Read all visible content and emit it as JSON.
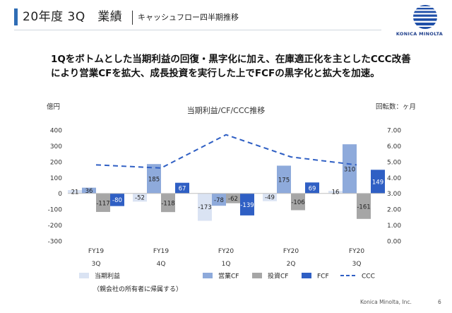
{
  "header": {
    "title": "20年度 3Q　業績",
    "subtitle": "キャッシュフロー四半期推移",
    "logo_text": "KONICA MINOLTA"
  },
  "lead_text": [
    "1Qをボトムとした当期利益の回復・黒字化に加え、在庫適正化を主としたCCC改善",
    "により営業CFを拡大、成長投資を実行した上でFCFの黒字化と拡大を加速。"
  ],
  "footer": {
    "company": "Konica Minolta, Inc.",
    "page": "6"
  },
  "colors": {
    "profit": "#dae3f3",
    "operating_cf": "#8eaadb",
    "investing_cf": "#a6a6a6",
    "fcf": "#2f5fc4",
    "ccc": "#2f5fc4"
  },
  "chart_data": {
    "type": "bar",
    "title": "当期利益/CF/CCC推移",
    "ylabel": "億円",
    "y2label": "回転数：ヶ月",
    "categories": [
      [
        "FY19",
        "3Q"
      ],
      [
        "FY19",
        "4Q"
      ],
      [
        "FY20",
        "1Q"
      ],
      [
        "FY20",
        "2Q"
      ],
      [
        "FY20",
        "3Q"
      ]
    ],
    "ylim": [
      -300,
      400
    ],
    "yticks": [
      -300,
      -200,
      -100,
      0,
      100,
      200,
      300,
      400
    ],
    "y2lim": [
      0,
      7
    ],
    "y2ticks": [
      "0.00",
      "1.00",
      "2.00",
      "3.00",
      "4.00",
      "5.00",
      "6.00",
      "7.00"
    ],
    "series": [
      {
        "name": "当期利益",
        "name_note": "（親会社の所有者に帰属する）",
        "key": "profit",
        "values": [
          21,
          -52,
          -173,
          -49,
          16
        ]
      },
      {
        "name": "営業CF",
        "key": "operating_cf",
        "values": [
          36,
          185,
          -78,
          175,
          310
        ]
      },
      {
        "name": "投資CF",
        "key": "investing_cf",
        "values": [
          -117,
          -118,
          -62,
          -106,
          -161
        ]
      },
      {
        "name": "FCF",
        "key": "fcf",
        "values": [
          -80,
          67,
          -139,
          69,
          149
        ]
      }
    ],
    "line_series": {
      "name": "CCC",
      "key": "ccc",
      "values": [
        4.8,
        4.6,
        6.7,
        5.3,
        4.8
      ]
    },
    "grid": false,
    "legend": "bottom"
  }
}
